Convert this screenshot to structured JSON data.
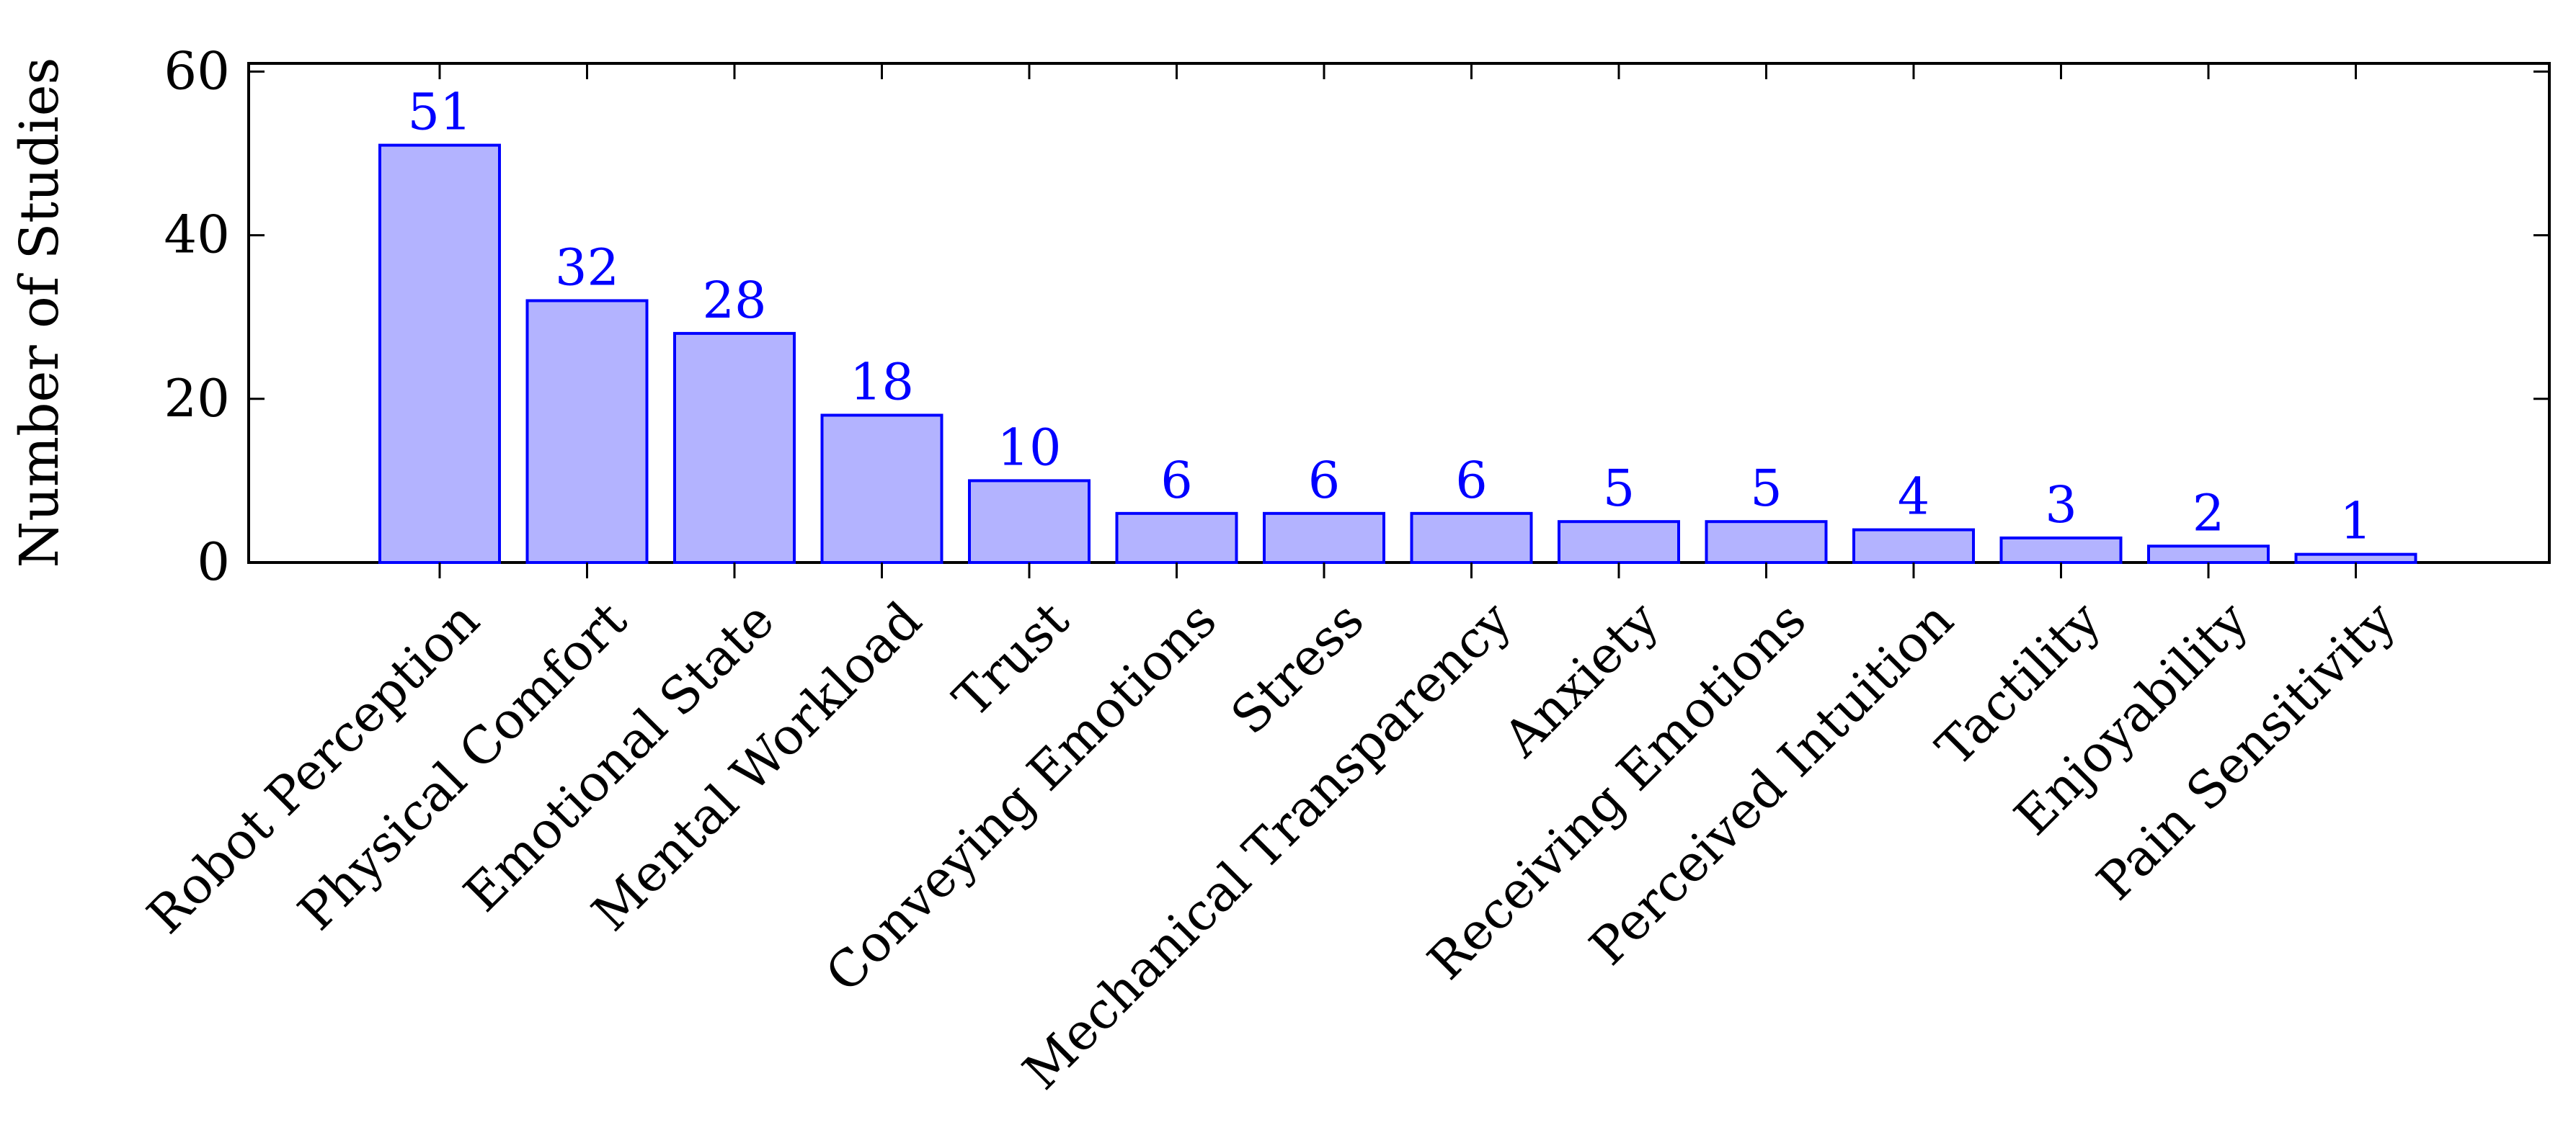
{
  "chart_data": {
    "type": "bar",
    "title": "",
    "xlabel": "",
    "ylabel": "Number of Studies",
    "ylim": [
      0,
      61
    ],
    "yticks": [
      0,
      20,
      40,
      60
    ],
    "grid": false,
    "legend": "none",
    "categories": [
      "Robot Perception",
      "Physical Comfort",
      "Emotional State",
      "Mental Workload",
      "Trust",
      "Conveying Emotions",
      "Stress",
      "Mechanical Transparency",
      "Anxiety",
      "Receiving Emotions",
      "Perceived Intuition",
      "Tactility",
      "Enjoyability",
      "Pain Sensitivity"
    ],
    "values": [
      51,
      32,
      28,
      18,
      10,
      6,
      6,
      6,
      5,
      5,
      4,
      3,
      2,
      1
    ],
    "colors": {
      "bar_fill": "#b3b3ff",
      "bar_stroke": "#0000ff",
      "data_label": "#0000ff",
      "axis": "#000000"
    }
  }
}
